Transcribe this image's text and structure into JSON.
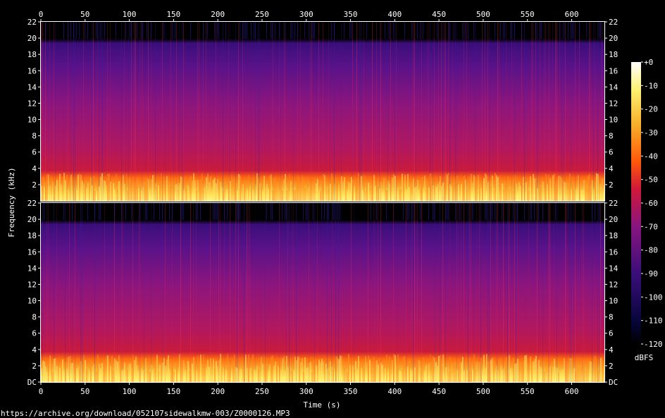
{
  "chart_data": {
    "type": "heatmap",
    "title": "",
    "xlabel": "Time (s)",
    "ylabel": "Frequency (kHz)",
    "xlim": [
      0,
      637
    ],
    "x_ticks": [
      0,
      50,
      100,
      150,
      200,
      250,
      300,
      350,
      400,
      450,
      500,
      550,
      600
    ],
    "ylim": [
      0,
      22
    ],
    "y_ticks_top": [
      "22",
      "20",
      "18",
      "16",
      "14",
      "12",
      "10",
      "8",
      "6",
      "4",
      "2"
    ],
    "y_ticks_bottom": [
      "22",
      "20",
      "18",
      "16",
      "14",
      "12",
      "10",
      "8",
      "6",
      "4",
      "2",
      "DC"
    ],
    "channels": 2,
    "colorbar": {
      "label": "dBFS",
      "range": [
        -120,
        0
      ],
      "ticks": [
        "+0",
        "-10",
        "-20",
        "-30",
        "-40",
        "-50",
        "-60",
        "-70",
        "-80",
        "-90",
        "-100",
        "-110",
        "-120"
      ]
    },
    "levels_by_frequency": [
      {
        "khz": 0.5,
        "dbfs": -12
      },
      {
        "khz": 1.5,
        "dbfs": -25
      },
      {
        "khz": 3.0,
        "dbfs": -45
      },
      {
        "khz": 5.0,
        "dbfs": -62
      },
      {
        "khz": 10.0,
        "dbfs": -68
      },
      {
        "khz": 16.0,
        "dbfs": -78
      },
      {
        "khz": 19.5,
        "dbfs": -88
      },
      {
        "khz": 21.0,
        "dbfs": -120
      }
    ]
  },
  "footer": {
    "source": "https://archive.org/download/052107sidewalkmw-003/Z0000126.MP3"
  }
}
